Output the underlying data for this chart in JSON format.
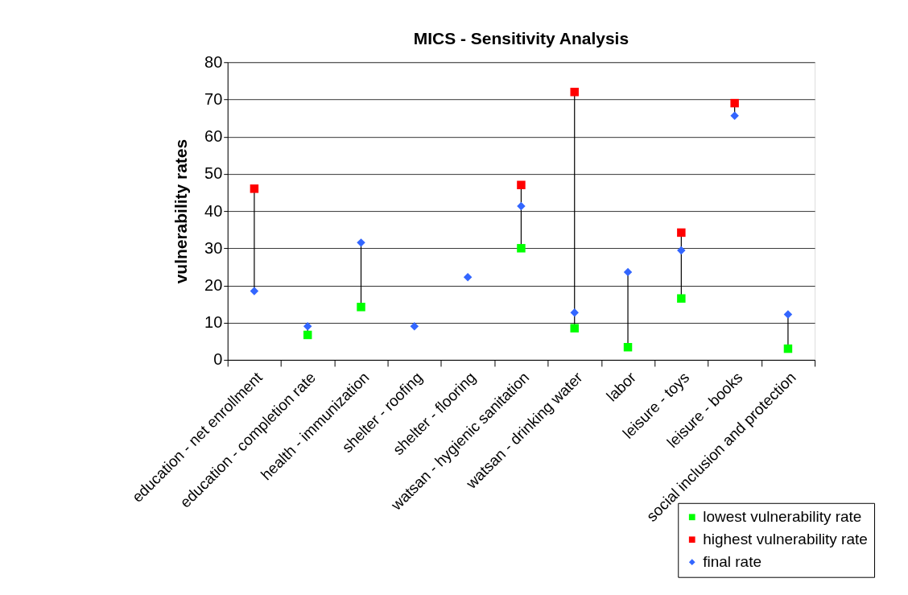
{
  "chart_data": {
    "type": "scatter",
    "title": "MICS - Sensitivity Analysis",
    "ylabel": "vulnerability rates",
    "categories": [
      "education - net enrollment",
      "education - completion rate",
      "health - immunization",
      "shelter - roofing",
      "shelter - flooring",
      "watsan - hygienic sanitation",
      "watsan - drinking water",
      "labor",
      "leisure - toys",
      "leisure - books",
      "social inclusion and protection"
    ],
    "series": [
      {
        "name": "lowest vulnerability rate",
        "color": "#00ff00",
        "marker": "square",
        "values": [
          null,
          6.7,
          14.2,
          null,
          null,
          30,
          8.5,
          3.4,
          16.5,
          null,
          3
        ]
      },
      {
        "name": "highest vulnerability rate",
        "color": "#ff0000",
        "marker": "square",
        "values": [
          46,
          null,
          null,
          null,
          null,
          47,
          72,
          null,
          34.2,
          69,
          null
        ]
      },
      {
        "name": "final rate",
        "color": "#3366ff",
        "marker": "diamond",
        "values": [
          18.5,
          9,
          31.5,
          9,
          22.2,
          41.3,
          12.7,
          23.6,
          29.4,
          65.6,
          12.2
        ]
      }
    ],
    "ylim": [
      0,
      80
    ],
    "yticks": [
      0,
      10,
      20,
      30,
      40,
      50,
      60,
      70,
      80
    ],
    "grid": "y",
    "legend": "bottom right"
  }
}
